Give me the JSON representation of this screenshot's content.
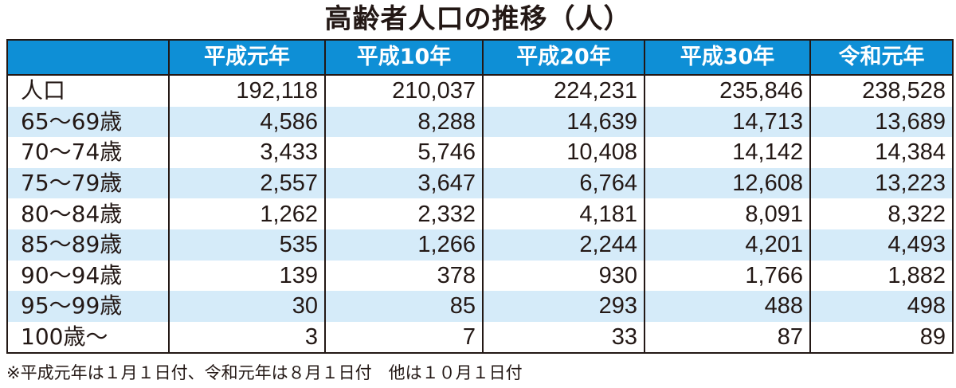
{
  "title": "高齢者人口の推移（人）",
  "columns": [
    "",
    "平成元年",
    "平成10年",
    "平成20年",
    "平成30年",
    "令和元年"
  ],
  "rows": [
    {
      "label": "人口",
      "values": [
        "192,118",
        "210,037",
        "224,231",
        "235,846",
        "238,528"
      ]
    },
    {
      "label": "65～69歳",
      "values": [
        "4,586",
        "8,288",
        "14,639",
        "14,713",
        "13,689"
      ]
    },
    {
      "label": "70～74歳",
      "values": [
        "3,433",
        "5,746",
        "10,408",
        "14,142",
        "14,384"
      ]
    },
    {
      "label": "75～79歳",
      "values": [
        "2,557",
        "3,647",
        "6,764",
        "12,608",
        "13,223"
      ]
    },
    {
      "label": "80～84歳",
      "values": [
        "1,262",
        "2,332",
        "4,181",
        "8,091",
        "8,322"
      ]
    },
    {
      "label": "85～89歳",
      "values": [
        "535",
        "1,266",
        "2,244",
        "4,201",
        "4,493"
      ]
    },
    {
      "label": "90～94歳",
      "values": [
        "139",
        "378",
        "930",
        "1,766",
        "1,882"
      ]
    },
    {
      "label": "95～99歳",
      "values": [
        "30",
        "85",
        "293",
        "488",
        "498"
      ]
    },
    {
      "label": "100歳～",
      "values": [
        "3",
        "7",
        "33",
        "87",
        "89"
      ]
    }
  ],
  "footnote": "※平成元年は１月１日付、令和元年は８月１日付　他は１０月１日付",
  "colors": {
    "header_bg": "#0e8fd6",
    "stripe_bg": "#d5ebf9",
    "text": "#231815"
  }
}
